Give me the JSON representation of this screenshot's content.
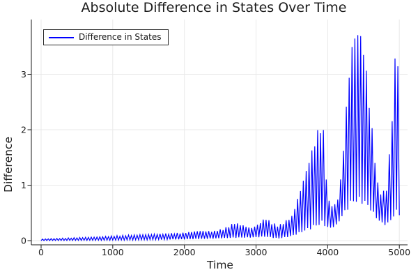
{
  "title": "Absolute Difference in States Over Time",
  "axes": {
    "xlabel": "Time",
    "ylabel": "Difference"
  },
  "legend": {
    "label": "Difference in States"
  },
  "colors": {
    "line": "#0000ff",
    "grid": "#e9e9e9",
    "axis": "#1a1a1a",
    "tick_text": "#1c1c1c",
    "background": "#ffffff"
  },
  "chart_data": {
    "type": "line",
    "title": "Absolute Difference in States Over Time",
    "xlabel": "Time",
    "ylabel": "Difference",
    "xlim": [
      0,
      5000
    ],
    "ylim": [
      0,
      4
    ],
    "xticks": [
      0,
      1000,
      2000,
      3000,
      4000,
      5000
    ],
    "yticks": [
      0,
      1,
      2,
      3
    ],
    "grid": true,
    "legend_position": "top-left",
    "series": [
      {
        "name": "Difference in States",
        "color": "#0000ff",
        "pattern": "dense oscillation between lower and upper envelope, period ~40 time units",
        "oscillation_period": 40,
        "envelope_upper": [
          [
            0,
            0.03
          ],
          [
            400,
            0.05
          ],
          [
            800,
            0.07
          ],
          [
            1200,
            0.1
          ],
          [
            1600,
            0.12
          ],
          [
            2000,
            0.145
          ],
          [
            2200,
            0.18
          ],
          [
            2400,
            0.17
          ],
          [
            2550,
            0.22
          ],
          [
            2700,
            0.33
          ],
          [
            2820,
            0.28
          ],
          [
            2930,
            0.23
          ],
          [
            3030,
            0.3
          ],
          [
            3130,
            0.42
          ],
          [
            3220,
            0.33
          ],
          [
            3320,
            0.28
          ],
          [
            3420,
            0.37
          ],
          [
            3500,
            0.45
          ],
          [
            3600,
            0.85
          ],
          [
            3700,
            1.3
          ],
          [
            3800,
            1.75
          ],
          [
            3880,
            2.1
          ],
          [
            3930,
            2.2
          ],
          [
            3975,
            1.3
          ],
          [
            4020,
            0.72
          ],
          [
            4110,
            0.65
          ],
          [
            4170,
            0.95
          ],
          [
            4230,
            1.9
          ],
          [
            4290,
            3.0
          ],
          [
            4350,
            3.7
          ],
          [
            4400,
            3.87
          ],
          [
            4450,
            3.85
          ],
          [
            4500,
            3.55
          ],
          [
            4550,
            3.0
          ],
          [
            4600,
            2.3
          ],
          [
            4650,
            1.65
          ],
          [
            4700,
            1.05
          ],
          [
            4760,
            0.85
          ],
          [
            4820,
            1.0
          ],
          [
            4870,
            1.7
          ],
          [
            4910,
            2.6
          ],
          [
            4950,
            3.55
          ],
          [
            4980,
            3.4
          ],
          [
            5000,
            3.25
          ]
        ],
        "envelope_lower": [
          [
            0,
            0.0
          ],
          [
            1000,
            0.005
          ],
          [
            2000,
            0.02
          ],
          [
            2600,
            0.04
          ],
          [
            2930,
            0.05
          ],
          [
            3130,
            0.06
          ],
          [
            3320,
            0.03
          ],
          [
            3500,
            0.07
          ],
          [
            3700,
            0.15
          ],
          [
            3930,
            0.25
          ],
          [
            4020,
            0.2
          ],
          [
            4110,
            0.25
          ],
          [
            4230,
            0.45
          ],
          [
            4350,
            0.6
          ],
          [
            4500,
            0.6
          ],
          [
            4600,
            0.5
          ],
          [
            4700,
            0.35
          ],
          [
            4820,
            0.25
          ],
          [
            4910,
            0.35
          ],
          [
            5000,
            0.4
          ]
        ]
      }
    ]
  }
}
